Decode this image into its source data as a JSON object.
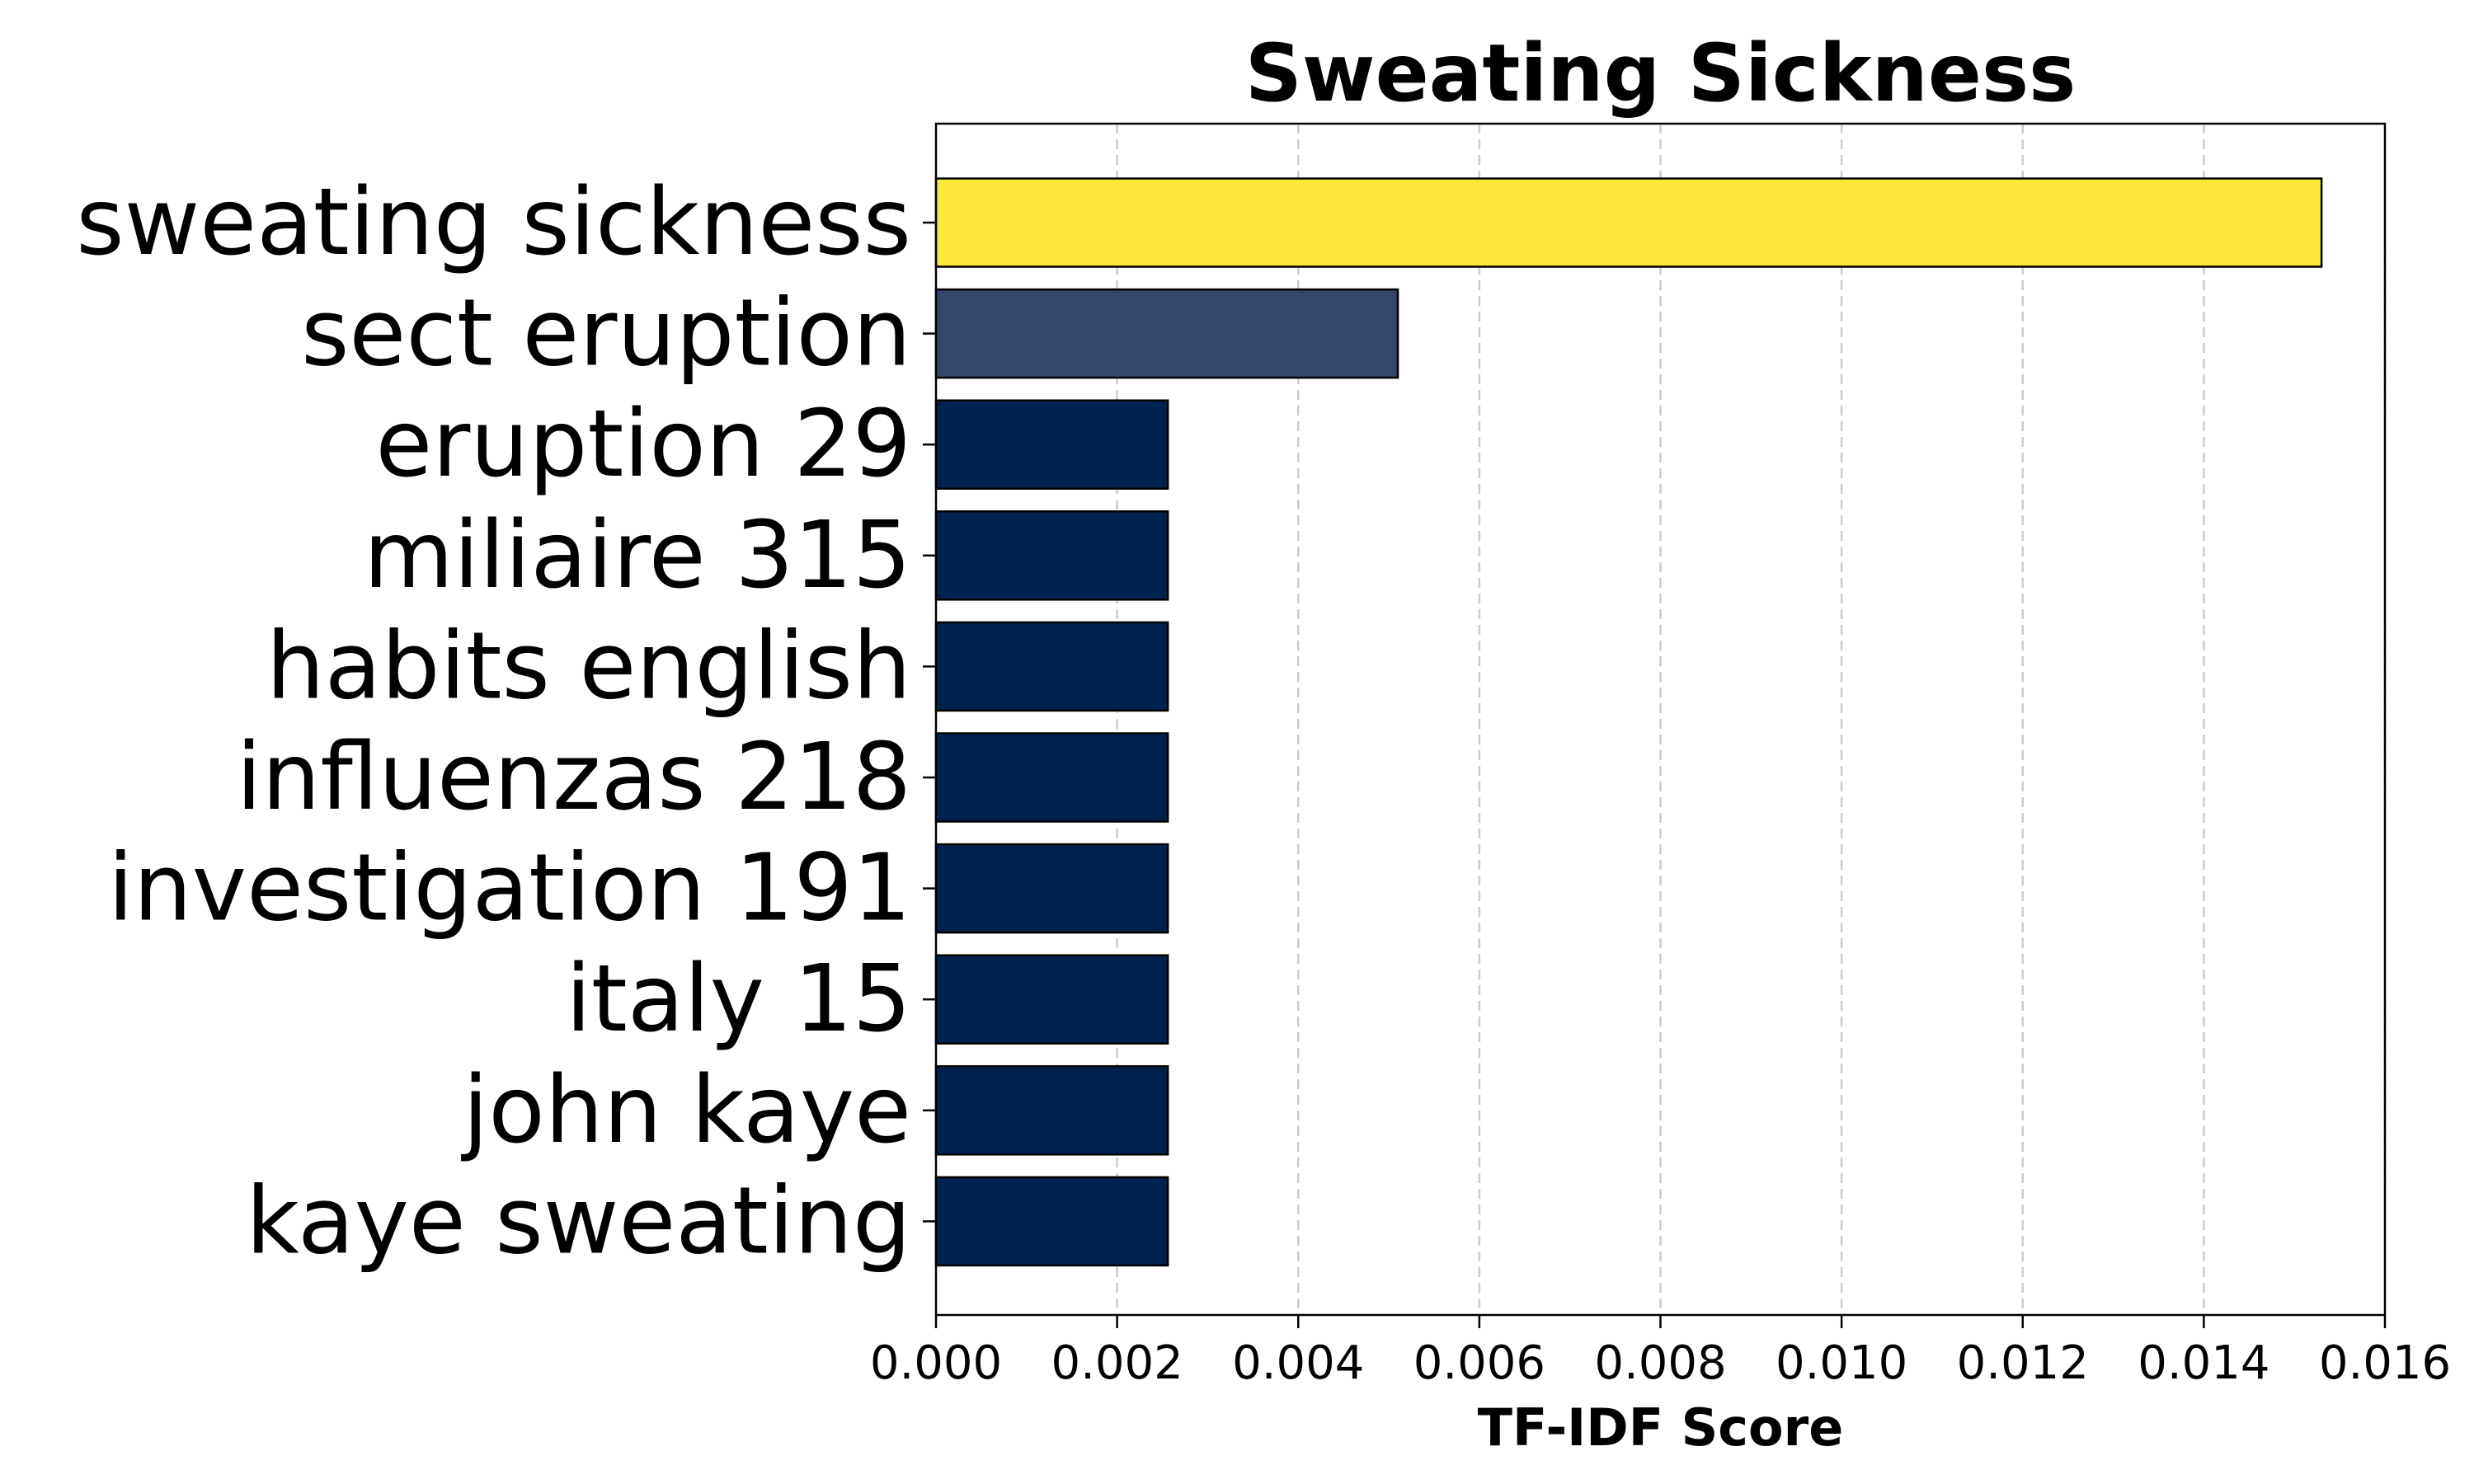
{
  "chart_data": {
    "type": "bar",
    "orientation": "horizontal",
    "title": "Sweating Sickness",
    "xlabel": "TF-IDF Score",
    "ylabel": "",
    "xlim": [
      0,
      0.016
    ],
    "xticks": [
      "0.000",
      "0.002",
      "0.004",
      "0.006",
      "0.008",
      "0.010",
      "0.012",
      "0.014",
      "0.016"
    ],
    "grid": "x-dashed",
    "categories": [
      "sweating sickness",
      "sect eruption",
      "eruption 29",
      "miliaire 315",
      "habits english",
      "influenzas 218",
      "investigation 191",
      "italy 15",
      "john kaye",
      "kaye sweating"
    ],
    "values": [
      0.0153,
      0.0051,
      0.00256,
      0.00256,
      0.00256,
      0.00256,
      0.00256,
      0.00256,
      0.00256,
      0.00256
    ],
    "colors": [
      "#fde73b",
      "#35456b",
      "#00224e",
      "#00224e",
      "#00224e",
      "#00224e",
      "#00224e",
      "#00224e",
      "#00224e",
      "#00224e"
    ]
  }
}
